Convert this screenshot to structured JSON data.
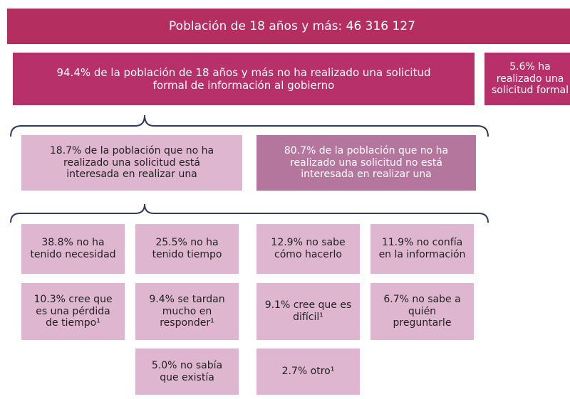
{
  "header": {
    "title": "Población de 18 años y más: 46 316 127"
  },
  "summary": {
    "left": "94.4% de la población de 18 años y más no ha realizado una solicitud formal de información al gobierno",
    "right": "5.6% ha realizado una solicitud formal"
  },
  "level2": {
    "interested": "18.7% de la población que no ha realizado una solicitud está interesada en realizar una",
    "not_interested": "80.7% de la población que no ha realizado una solicitud  no está interesada en realizar una"
  },
  "reasons": [
    "38.8% no ha tenido necesidad",
    "25.5% no ha tenido tiempo",
    "12.9% no sabe cómo hacerlo",
    "11.9% no confía en la información",
    "10.3% cree que es una pérdida de tiempo¹",
    "9.4% se tardan mucho en responder¹",
    "9.1% cree que es difícil¹",
    "6.7% no sabe a quién preguntarle",
    "5.0% no sabía que existía",
    "2.7% otro¹"
  ]
}
